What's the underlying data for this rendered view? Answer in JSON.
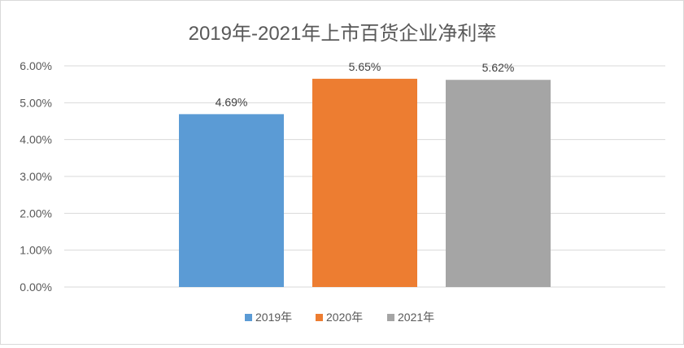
{
  "chart_data": {
    "type": "bar",
    "title": "2019年-2021年上市百货企业净利率",
    "categories": [
      ""
    ],
    "series": [
      {
        "name": "2019年",
        "values": [
          4.69
        ],
        "label": "4.69%",
        "color": "#5b9bd5"
      },
      {
        "name": "2020年",
        "values": [
          5.65
        ],
        "label": "5.65%",
        "color": "#ed7d31"
      },
      {
        "name": "2021年",
        "values": [
          5.62
        ],
        "label": "5.62%",
        "color": "#a5a5a5"
      }
    ],
    "yticks": [
      "0.00%",
      "1.00%",
      "2.00%",
      "3.00%",
      "4.00%",
      "5.00%",
      "6.00%"
    ],
    "ylim": [
      0,
      6
    ],
    "grid": true,
    "legend": "bottom"
  }
}
